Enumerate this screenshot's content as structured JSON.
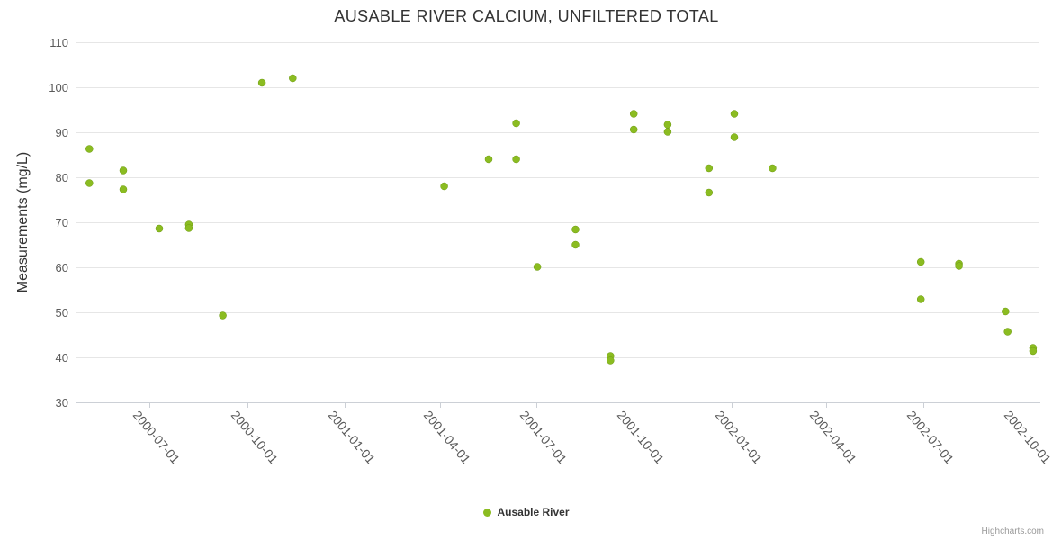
{
  "credits": {
    "label": "Highcharts.com"
  },
  "chart_data": {
    "type": "scatter",
    "title": "AUSABLE RIVER CALCIUM, UNFILTERED TOTAL",
    "xlabel": "",
    "ylabel": "Measurements (mg/L)",
    "ylim": [
      30,
      110
    ],
    "y_tick_interval": 10,
    "y_ticks": [
      30,
      40,
      50,
      60,
      70,
      80,
      90,
      100,
      110
    ],
    "x_ticks": [
      "2000-07-01",
      "2000-10-01",
      "2001-01-01",
      "2001-04-01",
      "2001-07-01",
      "2001-10-01",
      "2002-01-01",
      "2002-04-01",
      "2002-07-01",
      "2002-10-01"
    ],
    "x_range": [
      "2000-04-22",
      "2002-10-19"
    ],
    "grid": "horizontal",
    "legend_position": "bottom-center",
    "series": [
      {
        "name": "Ausable River",
        "color": "#8bbc21",
        "points": [
          {
            "date": "2000-05-05",
            "value": 86.3
          },
          {
            "date": "2000-05-05",
            "value": 78.7
          },
          {
            "date": "2000-06-06",
            "value": 81.5
          },
          {
            "date": "2000-06-06",
            "value": 77.3
          },
          {
            "date": "2000-07-10",
            "value": 68.6
          },
          {
            "date": "2000-08-07",
            "value": 69.5
          },
          {
            "date": "2000-08-07",
            "value": 68.7
          },
          {
            "date": "2000-09-08",
            "value": 49.3
          },
          {
            "date": "2000-10-15",
            "value": 101
          },
          {
            "date": "2000-11-13",
            "value": 102
          },
          {
            "date": "2001-04-05",
            "value": 78
          },
          {
            "date": "2001-05-17",
            "value": 84
          },
          {
            "date": "2001-06-12",
            "value": 92
          },
          {
            "date": "2001-06-12",
            "value": 84
          },
          {
            "date": "2001-07-02",
            "value": 60.1
          },
          {
            "date": "2001-08-07",
            "value": 68.4
          },
          {
            "date": "2001-08-07",
            "value": 65
          },
          {
            "date": "2001-09-09",
            "value": 40.3
          },
          {
            "date": "2001-09-09",
            "value": 39.3
          },
          {
            "date": "2001-10-01",
            "value": 94.1
          },
          {
            "date": "2001-10-01",
            "value": 90.6
          },
          {
            "date": "2001-11-02",
            "value": 91.7
          },
          {
            "date": "2001-11-02",
            "value": 90.1
          },
          {
            "date": "2001-12-11",
            "value": 82
          },
          {
            "date": "2001-12-11",
            "value": 76.6
          },
          {
            "date": "2002-01-04",
            "value": 94.1
          },
          {
            "date": "2002-01-04",
            "value": 88.9
          },
          {
            "date": "2002-02-09",
            "value": 82
          },
          {
            "date": "2002-06-29",
            "value": 61.2
          },
          {
            "date": "2002-06-29",
            "value": 52.9
          },
          {
            "date": "2002-08-04",
            "value": 60.8
          },
          {
            "date": "2002-08-04",
            "value": 60.3
          },
          {
            "date": "2002-09-17",
            "value": 50.2
          },
          {
            "date": "2002-09-19",
            "value": 45.7
          },
          {
            "date": "2002-10-13",
            "value": 42.1
          },
          {
            "date": "2002-10-13",
            "value": 41.4
          }
        ]
      }
    ]
  }
}
